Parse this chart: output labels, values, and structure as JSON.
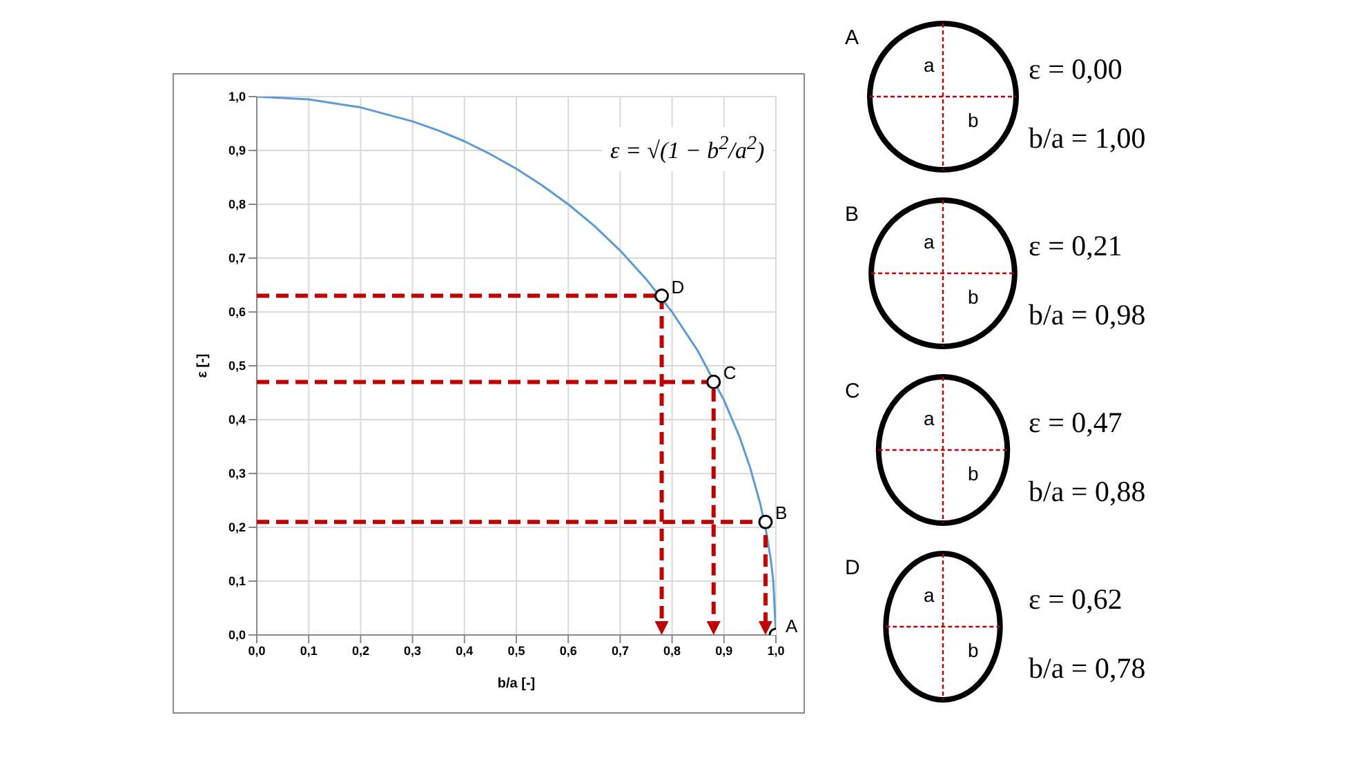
{
  "chart_data": {
    "type": "line",
    "xlabel": "b/a [-]",
    "ylabel": "ε [-]",
    "xlim": [
      0,
      1
    ],
    "ylim": [
      0,
      1
    ],
    "xticks": [
      {
        "value": 0,
        "label": "0,0"
      },
      {
        "value": 0.1,
        "label": "0,1"
      },
      {
        "value": 0.2,
        "label": "0,2"
      },
      {
        "value": 0.3,
        "label": "0,3"
      },
      {
        "value": 0.4,
        "label": "0,4"
      },
      {
        "value": 0.5,
        "label": "0,5"
      },
      {
        "value": 0.6,
        "label": "0,6"
      },
      {
        "value": 0.7,
        "label": "0,7"
      },
      {
        "value": 0.8,
        "label": "0,8"
      },
      {
        "value": 0.9,
        "label": "0,9"
      },
      {
        "value": 1,
        "label": "1,0"
      }
    ],
    "yticks": [
      {
        "value": 0,
        "label": "0,0"
      },
      {
        "value": 0.1,
        "label": "0,1"
      },
      {
        "value": 0.2,
        "label": "0,2"
      },
      {
        "value": 0.3,
        "label": "0,3"
      },
      {
        "value": 0.4,
        "label": "0,4"
      },
      {
        "value": 0.5,
        "label": "0,5"
      },
      {
        "value": 0.6,
        "label": "0,6"
      },
      {
        "value": 0.7,
        "label": "0,7"
      },
      {
        "value": 0.8,
        "label": "0,8"
      },
      {
        "value": 0.9,
        "label": "0,9"
      },
      {
        "value": 1,
        "label": "1,0"
      }
    ],
    "grid": true,
    "series": [
      {
        "color": "#5b9bd5",
        "marker": "none",
        "line_style": "solid",
        "x": [
          0,
          0.1,
          0.2,
          0.3,
          0.35,
          0.4,
          0.45,
          0.5,
          0.55,
          0.6,
          0.65,
          0.7,
          0.75,
          0.8,
          0.85,
          0.9,
          0.93,
          0.95,
          0.97,
          0.98,
          0.99,
          0.995,
          1
        ],
        "values": [
          1,
          0.995,
          0.98,
          0.954,
          0.937,
          0.917,
          0.893,
          0.866,
          0.835,
          0.8,
          0.76,
          0.714,
          0.661,
          0.6,
          0.527,
          0.436,
          0.368,
          0.312,
          0.243,
          0.199,
          0.141,
          0.1,
          0
        ]
      },
      {
        "type": "scatter",
        "color": "#000000",
        "marker": "circle",
        "x": [
          1,
          0.98,
          0.88,
          0.78
        ],
        "values": [
          0,
          0.21,
          0.47,
          0.63
        ]
      }
    ],
    "annotations": [
      "ε = √(1 − b$^{2}$/a$^{2}$)",
      {
        "text": "A",
        "x": 1,
        "y": 0
      },
      {
        "text": "B",
        "x": 0.98,
        "y": 0.21
      },
      {
        "text": "C",
        "x": 0.88,
        "y": 0.47
      },
      {
        "text": "D",
        "x": 0.78,
        "y": 0.63
      },
      "A",
      "a",
      "b",
      "ε = 0,00",
      "b/a = 1,00",
      "B",
      "a",
      "b",
      "ε = 0,21",
      "b/a = 0,98",
      "C",
      "a",
      "b",
      "ε = 0,47",
      "b/a = 0,88",
      "D",
      "a",
      "b",
      "ε = 0,62",
      "b/a = 0,78"
    ]
  }
}
